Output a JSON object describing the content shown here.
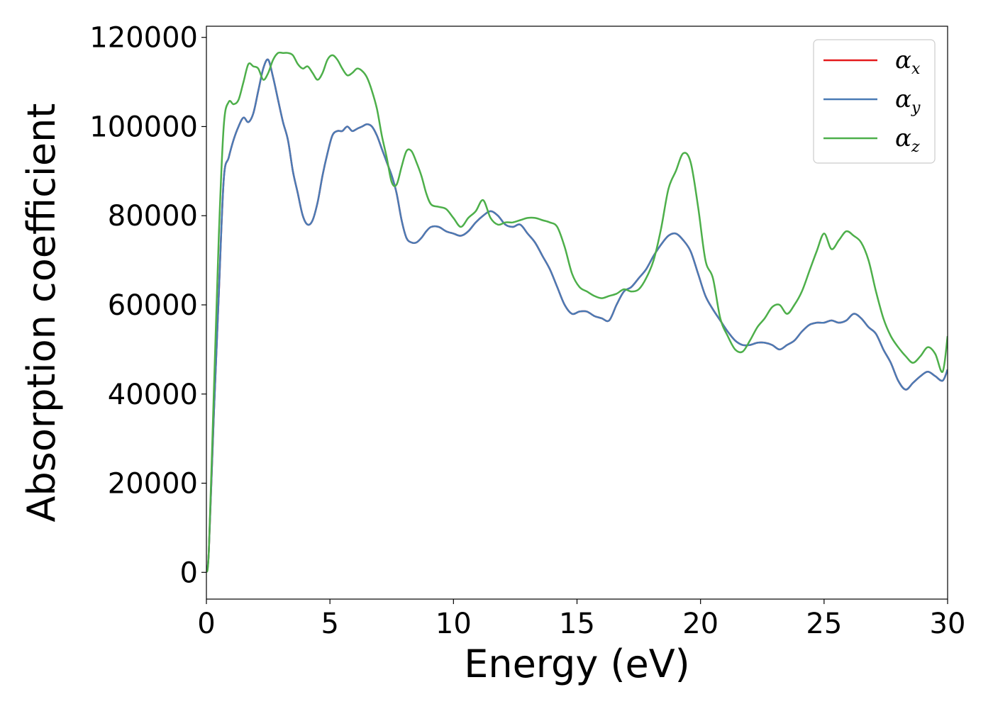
{
  "chart_data": {
    "type": "line",
    "xlabel": "Energy (eV)",
    "ylabel": "Absorption coefficient",
    "xlim": [
      0,
      30
    ],
    "ylim": [
      -6000,
      122500
    ],
    "xticks": [
      0,
      5,
      10,
      15,
      20,
      25,
      30
    ],
    "yticks": [
      0,
      20000,
      40000,
      60000,
      80000,
      100000,
      120000
    ],
    "grid": false,
    "legend_position": "top-right",
    "series": [
      {
        "name": "α",
        "name_sub": "x",
        "color": "#e41a1c",
        "x": [
          0,
          0.1,
          0.3,
          0.5,
          0.7,
          0.9,
          1.1,
          1.3,
          1.5,
          1.7,
          1.9,
          2.1,
          2.3,
          2.5,
          2.7,
          2.9,
          3.1,
          3.3,
          3.5,
          3.7,
          3.9,
          4.1,
          4.3,
          4.5,
          4.7,
          4.9,
          5.1,
          5.3,
          5.5,
          5.7,
          5.9,
          6.1,
          6.3,
          6.5,
          6.7,
          6.9,
          7.1,
          7.3,
          7.5,
          7.7,
          7.9,
          8.1,
          8.3,
          8.5,
          8.7,
          8.9,
          9.1,
          9.4,
          9.7,
          10,
          10.3,
          10.6,
          10.9,
          11.2,
          11.5,
          11.8,
          12.1,
          12.4,
          12.7,
          13,
          13.3,
          13.6,
          13.9,
          14.2,
          14.5,
          14.8,
          15.1,
          15.4,
          15.7,
          16,
          16.3,
          16.6,
          16.9,
          17.2,
          17.5,
          17.8,
          18.1,
          18.4,
          18.7,
          19,
          19.3,
          19.6,
          19.9,
          20.2,
          20.5,
          20.8,
          21.1,
          21.4,
          21.7,
          22,
          22.3,
          22.6,
          22.9,
          23.2,
          23.5,
          23.8,
          24.1,
          24.4,
          24.7,
          25,
          25.3,
          25.6,
          25.9,
          26.2,
          26.5,
          26.8,
          27.1,
          27.4,
          27.7,
          28,
          28.3,
          28.6,
          28.9,
          29.2,
          29.5,
          29.8,
          30
        ],
        "values": [
          0,
          5000,
          35000,
          62000,
          88000,
          93000,
          97000,
          100000,
          102000,
          101000,
          103000,
          108000,
          113000,
          115000,
          111000,
          106000,
          101000,
          97000,
          90000,
          85000,
          80000,
          78000,
          79000,
          83000,
          89000,
          94000,
          98000,
          99000,
          99000,
          100000,
          99000,
          99500,
          100000,
          100500,
          100000,
          98000,
          95000,
          92000,
          89000,
          85000,
          79000,
          75000,
          74000,
          74000,
          75000,
          76500,
          77500,
          77500,
          76500,
          76000,
          75500,
          76500,
          78500,
          80000,
          81000,
          80000,
          78000,
          77500,
          78000,
          76000,
          74000,
          71000,
          68000,
          64000,
          60000,
          58000,
          58500,
          58500,
          57500,
          57000,
          56500,
          60000,
          63000,
          64000,
          66000,
          68000,
          71000,
          73500,
          75500,
          76000,
          74500,
          72000,
          67000,
          62000,
          59000,
          56500,
          54000,
          52000,
          51000,
          51000,
          51500,
          51500,
          51000,
          50000,
          51000,
          52000,
          54000,
          55500,
          56000,
          56000,
          56500,
          56000,
          56500,
          58000,
          57000,
          55000,
          53500,
          50000,
          47000,
          43000,
          41000,
          42500,
          44000,
          45000,
          44000,
          43000,
          45500
        ]
      },
      {
        "name": "α",
        "name_sub": "y",
        "color": "#4a7bb5",
        "x": [
          0,
          0.1,
          0.3,
          0.5,
          0.7,
          0.9,
          1.1,
          1.3,
          1.5,
          1.7,
          1.9,
          2.1,
          2.3,
          2.5,
          2.7,
          2.9,
          3.1,
          3.3,
          3.5,
          3.7,
          3.9,
          4.1,
          4.3,
          4.5,
          4.7,
          4.9,
          5.1,
          5.3,
          5.5,
          5.7,
          5.9,
          6.1,
          6.3,
          6.5,
          6.7,
          6.9,
          7.1,
          7.3,
          7.5,
          7.7,
          7.9,
          8.1,
          8.3,
          8.5,
          8.7,
          8.9,
          9.1,
          9.4,
          9.7,
          10,
          10.3,
          10.6,
          10.9,
          11.2,
          11.5,
          11.8,
          12.1,
          12.4,
          12.7,
          13,
          13.3,
          13.6,
          13.9,
          14.2,
          14.5,
          14.8,
          15.1,
          15.4,
          15.7,
          16,
          16.3,
          16.6,
          16.9,
          17.2,
          17.5,
          17.8,
          18.1,
          18.4,
          18.7,
          19,
          19.3,
          19.6,
          19.9,
          20.2,
          20.5,
          20.8,
          21.1,
          21.4,
          21.7,
          22,
          22.3,
          22.6,
          22.9,
          23.2,
          23.5,
          23.8,
          24.1,
          24.4,
          24.7,
          25,
          25.3,
          25.6,
          25.9,
          26.2,
          26.5,
          26.8,
          27.1,
          27.4,
          27.7,
          28,
          28.3,
          28.6,
          28.9,
          29.2,
          29.5,
          29.8,
          30
        ],
        "values": [
          0,
          5000,
          35000,
          62000,
          88000,
          93000,
          97000,
          100000,
          102000,
          101000,
          103000,
          108000,
          113000,
          115000,
          111000,
          106000,
          101000,
          97000,
          90000,
          85000,
          80000,
          78000,
          79000,
          83000,
          89000,
          94000,
          98000,
          99000,
          99000,
          100000,
          99000,
          99500,
          100000,
          100500,
          100000,
          98000,
          95000,
          92000,
          89000,
          85000,
          79000,
          75000,
          74000,
          74000,
          75000,
          76500,
          77500,
          77500,
          76500,
          76000,
          75500,
          76500,
          78500,
          80000,
          81000,
          80000,
          78000,
          77500,
          78000,
          76000,
          74000,
          71000,
          68000,
          64000,
          60000,
          58000,
          58500,
          58500,
          57500,
          57000,
          56500,
          60000,
          63000,
          64000,
          66000,
          68000,
          71000,
          73500,
          75500,
          76000,
          74500,
          72000,
          67000,
          62000,
          59000,
          56500,
          54000,
          52000,
          51000,
          51000,
          51500,
          51500,
          51000,
          50000,
          51000,
          52000,
          54000,
          55500,
          56000,
          56000,
          56500,
          56000,
          56500,
          58000,
          57000,
          55000,
          53500,
          50000,
          47000,
          43000,
          41000,
          42500,
          44000,
          45000,
          44000,
          43000,
          45500
        ]
      },
      {
        "name": "α",
        "name_sub": "z",
        "color": "#4daf4a",
        "x": [
          0,
          0.1,
          0.3,
          0.5,
          0.7,
          0.9,
          1.1,
          1.3,
          1.5,
          1.7,
          1.9,
          2.1,
          2.3,
          2.5,
          2.7,
          2.9,
          3.1,
          3.3,
          3.5,
          3.7,
          3.9,
          4.1,
          4.3,
          4.5,
          4.7,
          4.9,
          5.1,
          5.3,
          5.5,
          5.7,
          5.9,
          6.1,
          6.3,
          6.5,
          6.7,
          6.9,
          7.1,
          7.3,
          7.5,
          7.7,
          7.9,
          8.1,
          8.3,
          8.5,
          8.7,
          8.9,
          9.1,
          9.4,
          9.7,
          10,
          10.3,
          10.6,
          10.9,
          11.2,
          11.5,
          11.8,
          12.1,
          12.4,
          12.7,
          13,
          13.3,
          13.6,
          13.9,
          14.2,
          14.5,
          14.8,
          15.1,
          15.4,
          15.7,
          16,
          16.3,
          16.6,
          16.9,
          17.2,
          17.5,
          17.8,
          18.1,
          18.4,
          18.7,
          19,
          19.3,
          19.6,
          19.9,
          20.2,
          20.5,
          20.8,
          21.1,
          21.4,
          21.7,
          22,
          22.3,
          22.6,
          22.9,
          23.2,
          23.5,
          23.8,
          24.1,
          24.4,
          24.7,
          25,
          25.3,
          25.6,
          25.9,
          26.2,
          26.5,
          26.8,
          27.1,
          27.4,
          27.7,
          28,
          28.3,
          28.6,
          28.9,
          29.2,
          29.5,
          29.8,
          30
        ],
        "values": [
          0,
          5000,
          40000,
          75000,
          100000,
          105500,
          105000,
          106000,
          110000,
          114000,
          113500,
          113000,
          110500,
          112000,
          115000,
          116500,
          116500,
          116500,
          116000,
          114000,
          113000,
          113500,
          112000,
          110500,
          112000,
          115000,
          116000,
          115000,
          113000,
          111500,
          112000,
          113000,
          112500,
          111000,
          108000,
          104000,
          98000,
          93000,
          87500,
          87000,
          91000,
          94500,
          94500,
          92000,
          89000,
          85000,
          82500,
          82000,
          81500,
          79500,
          77500,
          79500,
          81000,
          83500,
          79500,
          78000,
          78500,
          78500,
          79000,
          79500,
          79500,
          79000,
          78500,
          77500,
          73000,
          67000,
          64000,
          63000,
          62000,
          61500,
          62000,
          62500,
          63500,
          63000,
          63500,
          66000,
          70000,
          77000,
          86000,
          90000,
          94000,
          92000,
          82000,
          70000,
          66000,
          57000,
          53000,
          50000,
          49500,
          52000,
          55000,
          57000,
          59500,
          60000,
          58000,
          60000,
          63000,
          67500,
          72000,
          76000,
          72500,
          74500,
          76500,
          75500,
          74000,
          70000,
          63000,
          57000,
          53000,
          50500,
          48500,
          47000,
          48500,
          50500,
          49000,
          45000,
          53000
        ]
      }
    ]
  }
}
